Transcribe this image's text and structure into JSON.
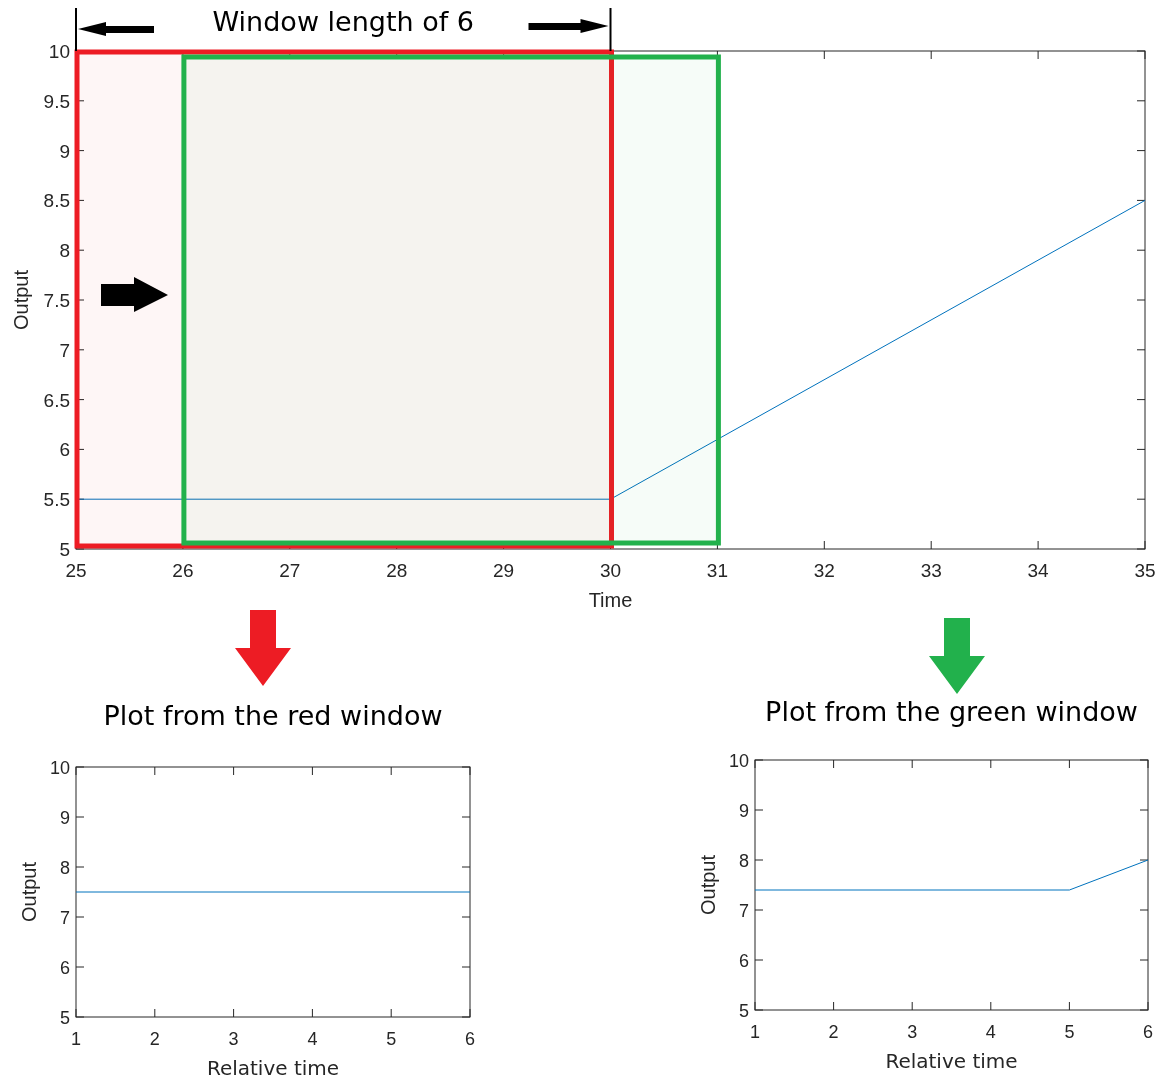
{
  "chart_data": [
    {
      "type": "line",
      "x": [
        25,
        30,
        35
      ],
      "values": [
        5.5,
        5.5,
        8.5
      ],
      "color": "#0072bd",
      "xlim": [
        25,
        35
      ],
      "xticks": [
        25,
        26,
        27,
        28,
        29,
        30,
        31,
        32,
        33,
        34,
        35
      ],
      "ylim": [
        5,
        10
      ],
      "yticks": [
        5,
        5.5,
        6,
        6.5,
        7,
        7.5,
        8,
        8.5,
        9,
        9.5,
        10
      ],
      "xlabel": "Time",
      "ylabel": "Output",
      "bands": [
        {
          "axis": "x",
          "from": 25,
          "to": 30,
          "color": "#ed1c24"
        },
        {
          "axis": "x",
          "from": 26,
          "to": 31,
          "color": "#22b14c"
        }
      ],
      "annotations": [
        "Window length of 6"
      ]
    },
    {
      "type": "line",
      "title": "Plot from the red window",
      "x": [
        1,
        6
      ],
      "values": [
        7.5,
        7.5
      ],
      "color": "#0072bd",
      "xlim": [
        1,
        6
      ],
      "xticks": [
        1,
        2,
        3,
        4,
        5,
        6
      ],
      "ylim": [
        5,
        10
      ],
      "yticks": [
        5,
        6,
        7,
        8,
        9,
        10
      ],
      "xlabel": "Relative time",
      "ylabel": "Output"
    },
    {
      "type": "line",
      "title": "Plot from the green window",
      "x": [
        1,
        5,
        6
      ],
      "values": [
        7.4,
        7.4,
        8
      ],
      "color": "#0072bd",
      "xlim": [
        1,
        6
      ],
      "xticks": [
        1,
        2,
        3,
        4,
        5,
        6
      ],
      "ylim": [
        5,
        10
      ],
      "yticks": [
        5,
        6,
        7,
        8,
        9,
        10
      ],
      "xlabel": "Relative time",
      "ylabel": "Output"
    }
  ]
}
